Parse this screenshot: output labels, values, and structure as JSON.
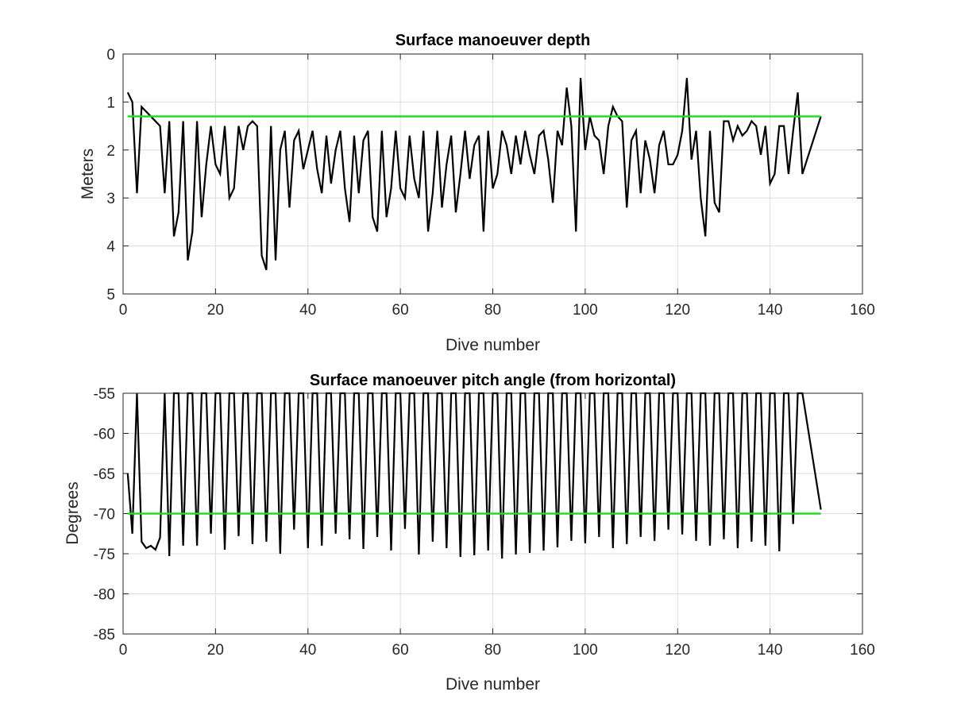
{
  "chart_data": [
    {
      "type": "line",
      "title": "Surface manoeuver depth",
      "xlabel": "Dive number",
      "ylabel": "Meters",
      "xlim": [
        0,
        160
      ],
      "ylim": [
        0,
        5
      ],
      "y_reversed": true,
      "grid": true,
      "xticks": [
        "0",
        "20",
        "40",
        "60",
        "80",
        "100",
        "120",
        "140",
        "160"
      ],
      "yticks": [
        "0",
        "1",
        "2",
        "3",
        "4",
        "5"
      ],
      "series": [
        {
          "color": "#000000",
          "x": [
            1,
            2,
            3,
            4,
            5,
            6,
            7,
            8,
            9,
            10,
            11,
            12,
            13,
            14,
            15,
            16,
            17,
            18,
            19,
            20,
            21,
            22,
            23,
            24,
            25,
            26,
            27,
            28,
            29,
            30,
            31,
            32,
            33,
            34,
            35,
            36,
            37,
            38,
            39,
            40,
            41,
            42,
            43,
            44,
            45,
            46,
            47,
            48,
            49,
            50,
            51,
            52,
            53,
            54,
            55,
            56,
            57,
            58,
            59,
            60,
            61,
            62,
            63,
            64,
            65,
            66,
            67,
            68,
            69,
            70,
            71,
            72,
            73,
            74,
            75,
            76,
            77,
            78,
            79,
            80,
            81,
            82,
            83,
            84,
            85,
            86,
            87,
            88,
            89,
            90,
            91,
            92,
            93,
            94,
            95,
            96,
            97,
            98,
            99,
            100,
            101,
            102,
            103,
            104,
            105,
            106,
            107,
            108,
            109,
            110,
            111,
            112,
            113,
            114,
            115,
            116,
            117,
            118,
            119,
            120,
            121,
            122,
            123,
            124,
            125,
            126,
            127,
            128,
            129,
            130,
            131,
            132,
            133,
            134,
            135,
            136,
            137,
            138,
            139,
            140,
            141,
            142,
            143,
            144,
            145,
            146,
            147,
            151
          ],
          "y": [
            0.8,
            1.0,
            2.9,
            1.1,
            1.2,
            1.3,
            1.4,
            1.5,
            2.9,
            1.4,
            3.8,
            3.3,
            1.4,
            4.3,
            3.7,
            1.4,
            3.4,
            2.3,
            1.5,
            2.3,
            2.5,
            1.5,
            3.0,
            2.8,
            1.5,
            2.0,
            1.5,
            1.4,
            1.5,
            4.2,
            4.5,
            1.5,
            4.3,
            2.0,
            1.6,
            3.2,
            1.8,
            1.6,
            2.4,
            2.0,
            1.6,
            2.4,
            2.9,
            1.7,
            2.7,
            2.0,
            1.6,
            2.8,
            3.5,
            1.7,
            2.9,
            1.8,
            1.6,
            3.4,
            3.7,
            1.6,
            3.4,
            2.8,
            1.6,
            2.8,
            3.0,
            1.7,
            2.6,
            3.0,
            1.6,
            3.7,
            2.9,
            1.6,
            3.2,
            2.3,
            1.7,
            3.3,
            2.5,
            1.6,
            2.6,
            1.9,
            1.7,
            3.7,
            1.6,
            2.8,
            2.5,
            1.6,
            1.9,
            2.5,
            1.7,
            2.3,
            1.6,
            2.1,
            2.5,
            1.7,
            1.6,
            2.2,
            3.1,
            1.6,
            1.9,
            0.7,
            1.5,
            3.7,
            0.5,
            2.0,
            1.3,
            1.7,
            1.8,
            2.5,
            1.5,
            1.1,
            1.3,
            1.4,
            3.2,
            1.8,
            1.6,
            2.9,
            1.8,
            2.2,
            2.9,
            1.9,
            1.6,
            2.3,
            2.3,
            2.1,
            1.6,
            0.5,
            2.2,
            1.6,
            3.0,
            3.8,
            1.6,
            3.1,
            3.3,
            1.4,
            1.4,
            1.8,
            1.5,
            1.7,
            1.6,
            1.4,
            1.5,
            2.1,
            1.5,
            2.7,
            2.5,
            1.5,
            1.5,
            2.5,
            1.6,
            0.8,
            2.5,
            1.3
          ]
        },
        {
          "color": "#22dd22",
          "x": [
            1,
            151
          ],
          "y": [
            1.3,
            1.3
          ]
        }
      ]
    },
    {
      "type": "line",
      "title": "Surface manoeuver pitch angle (from horizontal)",
      "xlabel": "Dive number",
      "ylabel": "Degrees",
      "xlim": [
        0,
        160
      ],
      "ylim": [
        -85,
        -55
      ],
      "grid": true,
      "xticks": [
        "0",
        "20",
        "40",
        "60",
        "80",
        "100",
        "120",
        "140",
        "160"
      ],
      "yticks": [
        "-55",
        "-60",
        "-65",
        "-70",
        "-75",
        "-80",
        "-85"
      ],
      "series": [
        {
          "color": "#000000",
          "x": [
            1,
            2,
            3,
            4,
            5,
            6,
            7,
            8,
            9,
            10,
            11,
            12,
            13,
            14,
            15,
            16,
            17,
            18,
            19,
            20,
            21,
            22,
            23,
            24,
            25,
            26,
            27,
            28,
            29,
            30,
            31,
            32,
            33,
            34,
            35,
            36,
            37,
            38,
            39,
            40,
            41,
            42,
            43,
            44,
            45,
            46,
            47,
            48,
            49,
            50,
            51,
            52,
            53,
            54,
            55,
            56,
            57,
            58,
            59,
            60,
            61,
            62,
            63,
            64,
            65,
            66,
            67,
            68,
            69,
            70,
            71,
            72,
            73,
            74,
            75,
            76,
            77,
            78,
            79,
            80,
            81,
            82,
            83,
            84,
            85,
            86,
            87,
            88,
            89,
            90,
            91,
            92,
            93,
            94,
            95,
            96,
            97,
            98,
            99,
            100,
            101,
            102,
            103,
            104,
            105,
            106,
            107,
            108,
            109,
            110,
            111,
            112,
            113,
            114,
            115,
            116,
            117,
            118,
            119,
            120,
            121,
            122,
            123,
            124,
            125,
            126,
            127,
            128,
            129,
            130,
            131,
            132,
            133,
            134,
            135,
            136,
            137,
            138,
            139,
            140,
            141,
            142,
            143,
            144,
            145,
            146,
            147,
            151
          ],
          "y": [
            -65,
            -72.5,
            -55,
            -73.5,
            -74.3,
            -74,
            -74.5,
            -73,
            -55,
            -75.3,
            -55,
            -55,
            -74,
            -55,
            -55,
            -74,
            -55,
            -55,
            -72.5,
            -55,
            -55,
            -74.5,
            -55,
            -55,
            -72.8,
            -55,
            -55,
            -73.8,
            -55,
            -55,
            -73.5,
            -55,
            -55,
            -75,
            -55,
            -55,
            -72,
            -55,
            -55,
            -74.3,
            -55,
            -55,
            -74,
            -55,
            -55,
            -72.5,
            -55,
            -55,
            -73.2,
            -55,
            -55,
            -74.4,
            -55,
            -55,
            -72.9,
            -55,
            -55,
            -74.6,
            -55,
            -55,
            -71.9,
            -55,
            -55,
            -75.1,
            -55,
            -55,
            -73.5,
            -55,
            -55,
            -74.3,
            -55,
            -55,
            -75.4,
            -55,
            -55,
            -75.2,
            -55,
            -55,
            -74.6,
            -55,
            -55,
            -75.6,
            -55,
            -55,
            -75.1,
            -55,
            -55,
            -74.9,
            -55,
            -55,
            -74.6,
            -55,
            -55,
            -74.2,
            -55,
            -55,
            -73.4,
            -55,
            -55,
            -73.7,
            -55,
            -55,
            -72.9,
            -55,
            -55,
            -74.3,
            -55,
            -55,
            -73.8,
            -55,
            -55,
            -72.9,
            -55,
            -55,
            -73.4,
            -55,
            -55,
            -72,
            -55,
            -55,
            -72.6,
            -55,
            -55,
            -73.4,
            -55,
            -55,
            -74,
            -55,
            -55,
            -73.2,
            -55,
            -55,
            -74.3,
            -55,
            -55,
            -73.5,
            -55,
            -55,
            -74,
            -55,
            -55,
            -74.7,
            -55,
            -55,
            -71.3,
            -55,
            -55,
            -69.5
          ]
        },
        {
          "color": "#22dd22",
          "x": [
            1,
            151
          ],
          "y": [
            -70,
            -70
          ]
        }
      ]
    }
  ]
}
